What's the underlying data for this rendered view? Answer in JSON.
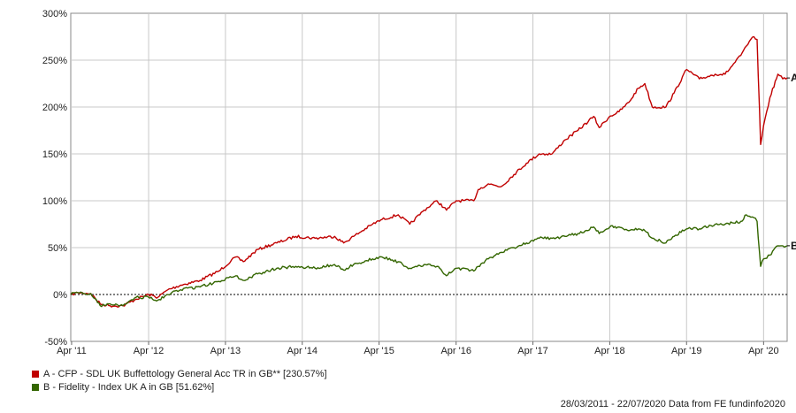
{
  "chart_data": {
    "type": "line",
    "x_tick_labels": [
      "Apr '11",
      "Apr '12",
      "Apr '13",
      "Apr '14",
      "Apr '15",
      "Apr '16",
      "Apr '17",
      "Apr '18",
      "Apr '19",
      "Apr '20"
    ],
    "y_tick_labels": [
      "-50%",
      "0%",
      "50%",
      "100%",
      "150%",
      "200%",
      "250%",
      "300%"
    ],
    "y_ticks": [
      -50,
      0,
      50,
      100,
      150,
      200,
      250,
      300
    ],
    "ylim": [
      -50,
      300
    ],
    "xlim": [
      "2011-03-28",
      "2020-07-22"
    ],
    "grid": true,
    "series": [
      {
        "name": "A - CFP - SDL UK Buffettology General Acc TR in GB** [230.57%]",
        "end_label": "A",
        "color": "#c00000",
        "x": [
          "2011-03-28",
          "2011-05-01",
          "2011-07-01",
          "2011-08-15",
          "2011-10-01",
          "2011-12-01",
          "2012-02-01",
          "2012-04-01",
          "2012-05-15",
          "2012-07-01",
          "2012-09-01",
          "2012-12-01",
          "2013-03-01",
          "2013-05-20",
          "2013-06-25",
          "2013-09-01",
          "2013-12-01",
          "2014-03-01",
          "2014-06-01",
          "2014-09-01",
          "2014-10-15",
          "2014-12-01",
          "2015-03-01",
          "2015-04-15",
          "2015-07-01",
          "2015-08-25",
          "2015-11-01",
          "2016-01-01",
          "2016-02-15",
          "2016-04-01",
          "2016-06-24",
          "2016-07-15",
          "2016-09-01",
          "2016-11-01",
          "2017-01-01",
          "2017-03-01",
          "2017-05-01",
          "2017-07-01",
          "2017-09-01",
          "2017-11-01",
          "2018-01-15",
          "2018-02-10",
          "2018-04-01",
          "2018-05-15",
          "2018-07-01",
          "2018-08-15",
          "2018-09-15",
          "2018-10-20",
          "2018-12-24",
          "2019-02-01",
          "2019-04-01",
          "2019-06-01",
          "2019-08-15",
          "2019-10-01",
          "2019-12-15",
          "2020-01-10",
          "2020-02-15",
          "2020-03-01",
          "2020-03-18",
          "2020-04-01",
          "2020-05-01",
          "2020-06-08",
          "2020-07-01",
          "2020-07-22"
        ],
        "values": [
          0,
          2,
          1,
          -10,
          -12,
          -12,
          -5,
          0,
          -3,
          5,
          10,
          15,
          25,
          40,
          35,
          48,
          55,
          62,
          60,
          62,
          55,
          62,
          75,
          80,
          85,
          75,
          90,
          100,
          90,
          100,
          100,
          112,
          118,
          115,
          128,
          140,
          150,
          150,
          165,
          175,
          190,
          178,
          190,
          195,
          205,
          220,
          225,
          200,
          200,
          215,
          240,
          230,
          235,
          235,
          255,
          265,
          275,
          272,
          160,
          180,
          210,
          235,
          230,
          231
        ]
      },
      {
        "name": "B - Fidelity - Index UK A in GB [51.62%]",
        "end_label": "B",
        "color": "#336600",
        "x": [
          "2011-03-28",
          "2011-05-01",
          "2011-07-01",
          "2011-08-15",
          "2011-10-01",
          "2011-12-01",
          "2012-02-01",
          "2012-04-01",
          "2012-05-15",
          "2012-07-01",
          "2012-09-01",
          "2012-12-01",
          "2013-03-01",
          "2013-05-20",
          "2013-06-25",
          "2013-09-01",
          "2013-12-01",
          "2014-03-01",
          "2014-06-01",
          "2014-09-01",
          "2014-10-15",
          "2014-12-01",
          "2015-03-01",
          "2015-04-15",
          "2015-07-01",
          "2015-08-25",
          "2015-11-01",
          "2016-01-01",
          "2016-02-15",
          "2016-04-01",
          "2016-06-24",
          "2016-07-15",
          "2016-09-01",
          "2016-11-01",
          "2017-01-01",
          "2017-03-01",
          "2017-05-01",
          "2017-07-01",
          "2017-09-01",
          "2017-11-01",
          "2018-01-15",
          "2018-02-10",
          "2018-04-01",
          "2018-05-15",
          "2018-07-01",
          "2018-08-15",
          "2018-09-15",
          "2018-10-20",
          "2018-12-24",
          "2019-02-01",
          "2019-04-01",
          "2019-06-01",
          "2019-08-15",
          "2019-10-01",
          "2019-12-15",
          "2020-01-10",
          "2020-02-15",
          "2020-03-01",
          "2020-03-18",
          "2020-04-01",
          "2020-05-01",
          "2020-06-08",
          "2020-07-01",
          "2020-07-22"
        ],
        "values": [
          0,
          2,
          1,
          -12,
          -10,
          -12,
          -3,
          -3,
          -6,
          0,
          5,
          8,
          14,
          20,
          15,
          22,
          28,
          30,
          28,
          32,
          26,
          32,
          38,
          40,
          35,
          28,
          32,
          30,
          20,
          28,
          25,
          30,
          38,
          45,
          50,
          55,
          60,
          60,
          62,
          65,
          72,
          65,
          72,
          72,
          68,
          70,
          68,
          60,
          55,
          62,
          70,
          70,
          75,
          75,
          78,
          85,
          82,
          78,
          30,
          38,
          42,
          52,
          52,
          52
        ]
      }
    ]
  },
  "footer_text": "28/03/2011 - 22/07/2020 Data from FE fundinfo2020"
}
